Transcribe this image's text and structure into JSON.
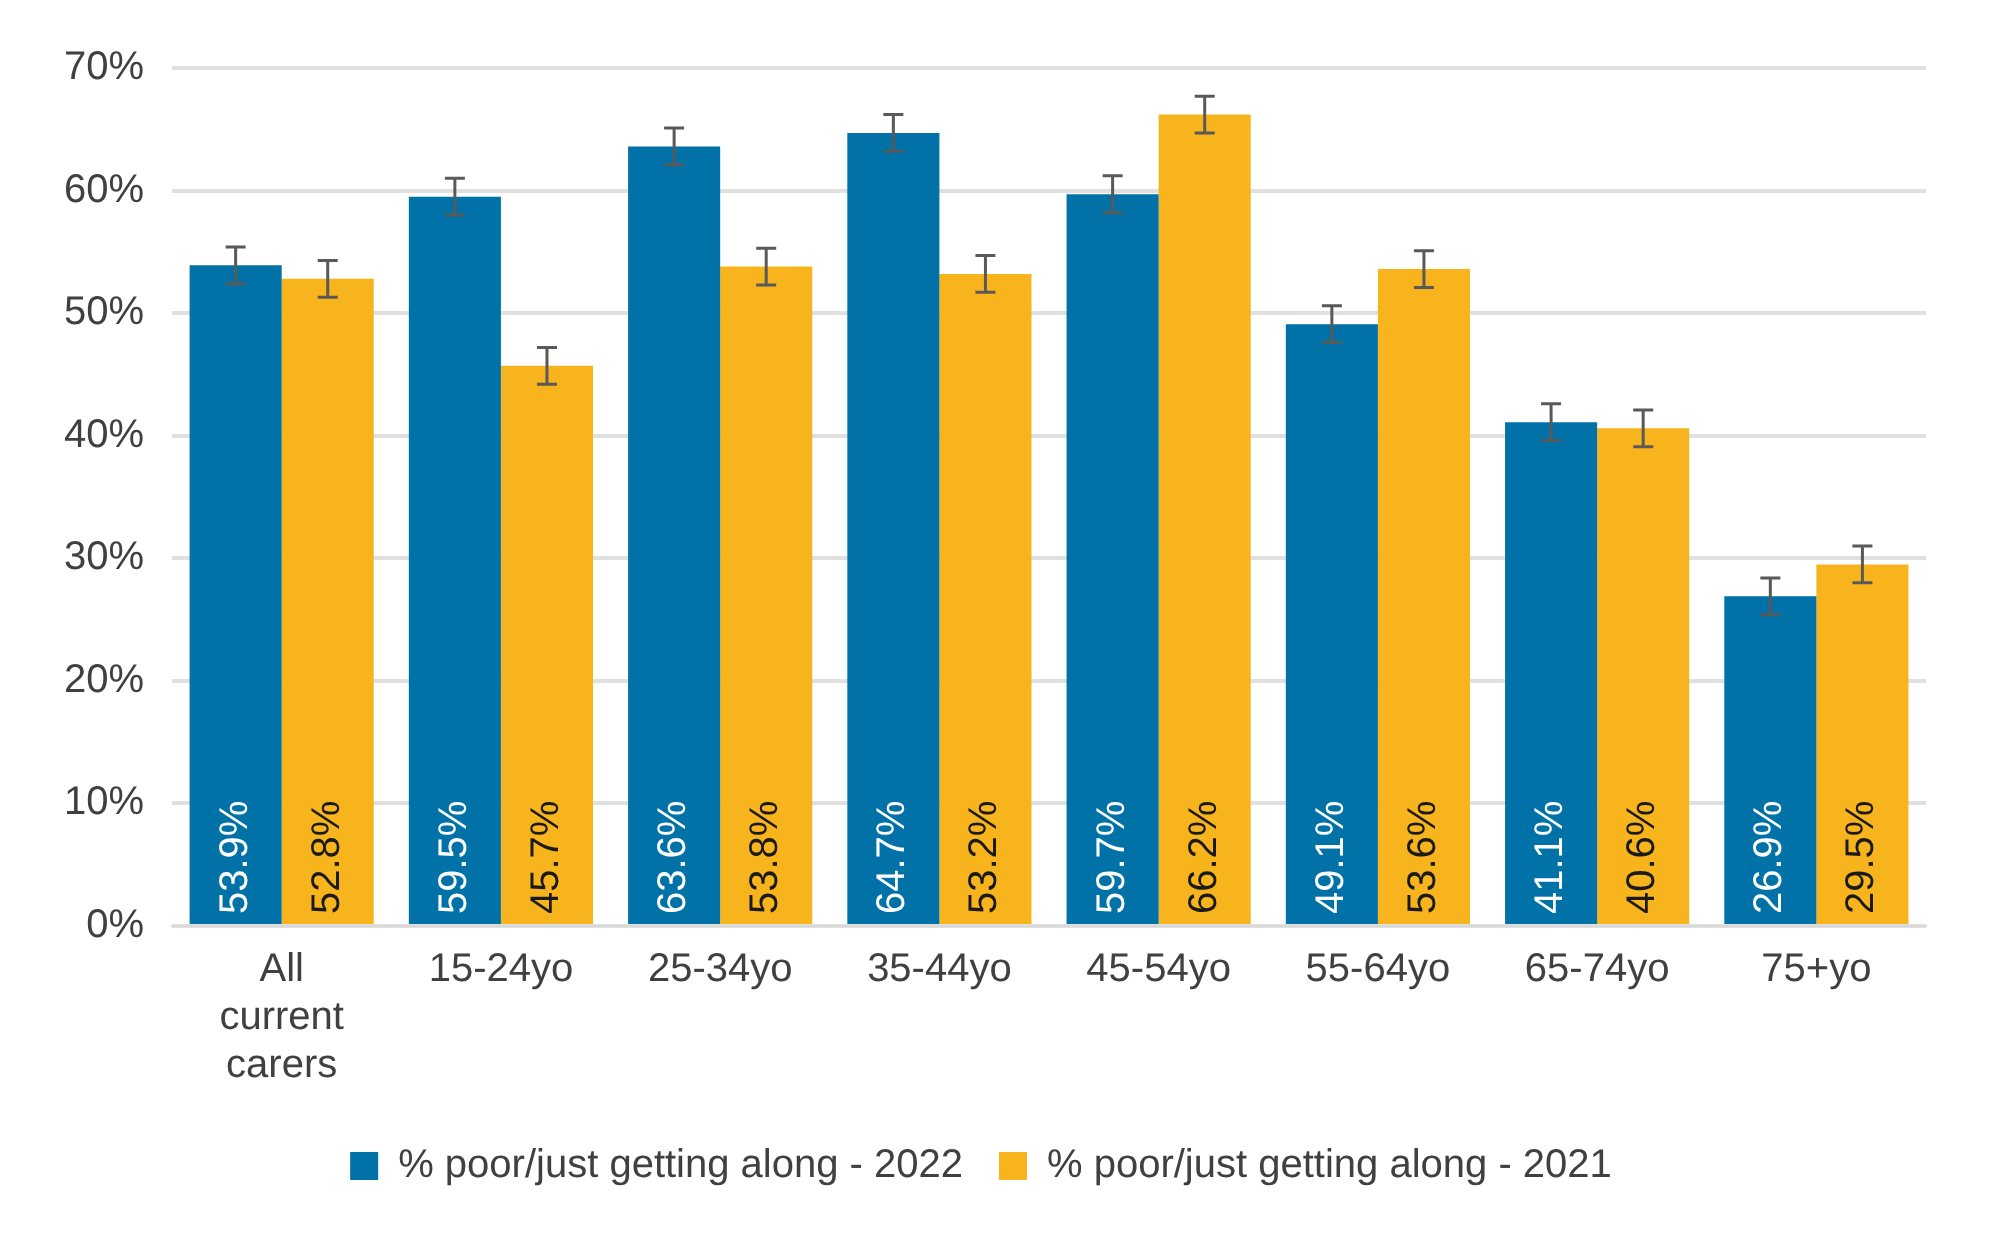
{
  "chart_data": {
    "type": "bar",
    "categories": [
      "All current carers",
      "15-24yo",
      "25-34yo",
      "35-44yo",
      "45-54yo",
      "55-64yo",
      "65-74yo",
      "75+yo"
    ],
    "series": [
      {
        "name": "% poor/just getting along - 2022",
        "color": "#0072a8",
        "values": [
          53.9,
          59.5,
          63.6,
          64.7,
          59.7,
          49.1,
          41.1,
          26.9
        ],
        "errors": [
          1.5,
          1.5,
          1.5,
          1.5,
          1.5,
          1.5,
          1.5,
          1.5
        ],
        "value_labels": [
          "53.9%",
          "59.5%",
          "63.6%",
          "64.7%",
          "59.7%",
          "49.1%",
          "41.1%",
          "26.9%"
        ]
      },
      {
        "name": "% poor/just getting along - 2021",
        "color": "#f8b41c",
        "values": [
          52.8,
          45.7,
          53.8,
          53.2,
          66.2,
          53.6,
          40.6,
          29.5
        ],
        "errors": [
          1.5,
          1.5,
          1.5,
          1.5,
          1.5,
          1.5,
          1.5,
          1.5
        ],
        "value_labels": [
          "52.8%",
          "45.7%",
          "53.8%",
          "53.2%",
          "66.2%",
          "53.6%",
          "40.6%",
          "29.5%"
        ]
      }
    ],
    "ylim": [
      0,
      70
    ],
    "yticks": [
      {
        "value": 0,
        "label": "0%"
      },
      {
        "value": 10,
        "label": "10%"
      },
      {
        "value": 20,
        "label": "20%"
      },
      {
        "value": 30,
        "label": "30%"
      },
      {
        "value": 40,
        "label": "40%"
      },
      {
        "value": 50,
        "label": "50%"
      },
      {
        "value": 60,
        "label": "60%"
      },
      {
        "value": 70,
        "label": "70%"
      }
    ],
    "grid": "y",
    "legend": "bottom"
  }
}
